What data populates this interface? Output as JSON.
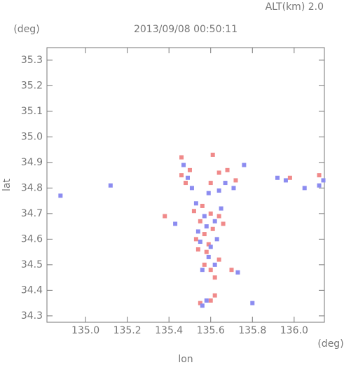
{
  "chart_data": {
    "type": "scatter",
    "title": "2013/09/08 00:50:11",
    "subtitle": "ALT(km) 2.0",
    "x_label": "lon",
    "y_label": "lat",
    "x_unit": "(deg)",
    "y_unit": "(deg)",
    "xlim": [
      134.815,
      136.145
    ],
    "ylim": [
      34.275,
      35.349
    ],
    "xticks": [
      {
        "value": 135,
        "label": "135.0"
      },
      135.2,
      135.4,
      135.6,
      135.8,
      {
        "value": 136,
        "label": "136.0"
      }
    ],
    "yticks": [
      34.3,
      34.4,
      34.5,
      34.6,
      34.7,
      34.8,
      34.9,
      {
        "value": 35,
        "label": "35.0"
      },
      35.1,
      35.2,
      35.3
    ],
    "series": [
      {
        "color": "#f08a8a",
        "x": [
          135.62,
          135.55,
          135.6,
          135.57,
          135.6,
          135.64,
          135.58,
          135.53,
          135.57,
          135.61,
          135.55,
          135.6,
          135.64,
          135.52,
          135.56,
          135.66,
          135.59,
          135.54,
          135.48,
          135.5,
          135.46,
          135.6,
          135.64,
          135.68,
          135.72,
          135.61,
          135.38,
          135.46,
          136.12,
          135.98,
          135.62,
          135.7
        ],
        "y": [
          34.38,
          34.35,
          34.36,
          34.5,
          34.48,
          34.52,
          34.55,
          34.6,
          34.62,
          34.64,
          34.67,
          34.7,
          34.69,
          34.71,
          34.73,
          34.66,
          34.58,
          34.56,
          34.82,
          34.87,
          34.85,
          34.82,
          34.86,
          34.87,
          34.83,
          34.93,
          34.69,
          34.92,
          34.85,
          34.84,
          34.45,
          34.48
        ]
      },
      {
        "color": "#8c8cf0",
        "x": [
          134.88,
          135.12,
          135.56,
          135.58,
          135.8,
          135.56,
          135.62,
          135.59,
          135.55,
          135.63,
          135.58,
          135.54,
          135.62,
          135.57,
          135.53,
          135.65,
          135.6,
          135.49,
          135.51,
          135.59,
          135.64,
          135.67,
          135.71,
          135.92,
          135.96,
          136.05,
          136.14,
          136.12,
          135.43,
          135.47,
          135.76,
          135.73
        ],
        "y": [
          34.77,
          34.81,
          34.34,
          34.36,
          34.35,
          34.48,
          34.5,
          34.53,
          34.59,
          34.6,
          34.65,
          34.63,
          34.67,
          34.69,
          34.74,
          34.72,
          34.57,
          34.84,
          34.8,
          34.78,
          34.79,
          34.82,
          34.8,
          34.84,
          34.83,
          34.8,
          34.83,
          34.81,
          34.66,
          34.89,
          34.89,
          34.47
        ]
      }
    ]
  }
}
